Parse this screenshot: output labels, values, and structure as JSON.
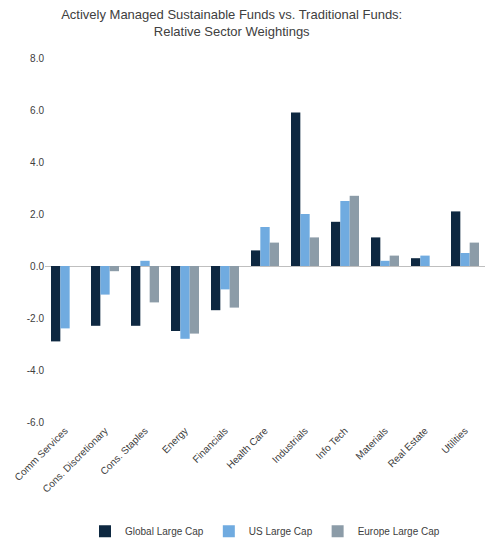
{
  "chart_data": {
    "type": "bar",
    "title": "Actively Managed Sustainable Funds vs. Traditional Funds:\nRelative Sector Weightings",
    "categories": [
      "Comm Services",
      "Cons. Discretionary",
      "Cons. Staples",
      "Energy",
      "Financials",
      "Health Care",
      "Industrials",
      "Info Tech",
      "Materials",
      "Real Estate",
      "Utilities"
    ],
    "series": [
      {
        "name": "Global Large Cap",
        "color": "#0e2841",
        "values": [
          -2.9,
          -2.3,
          -2.3,
          -2.5,
          -1.7,
          0.6,
          5.9,
          1.7,
          1.1,
          0.3,
          2.1
        ]
      },
      {
        "name": "US Large Cap",
        "color": "#70abe0",
        "values": [
          -2.4,
          -1.1,
          0.2,
          -2.8,
          -0.9,
          1.5,
          2.0,
          2.5,
          0.2,
          0.4,
          0.5
        ]
      },
      {
        "name": "Europe Large Cap",
        "color": "#8c9ca8",
        "values": [
          null,
          -0.2,
          -1.4,
          -2.6,
          -1.6,
          0.9,
          1.1,
          2.7,
          0.4,
          null,
          0.9
        ]
      }
    ],
    "ylim": [
      -6,
      8
    ],
    "yticks": [
      {
        "value": -6,
        "label": "-6.0"
      },
      {
        "value": -4,
        "label": "-4.0"
      },
      {
        "value": -2,
        "label": "-2.0"
      },
      {
        "value": 0,
        "label": "0.0"
      },
      {
        "value": 2,
        "label": "2.0"
      },
      {
        "value": 4,
        "label": "4.0"
      },
      {
        "value": 6,
        "label": "6.0"
      },
      {
        "value": 8,
        "label": "8.0"
      }
    ],
    "grid": false,
    "legend": "bottom"
  }
}
